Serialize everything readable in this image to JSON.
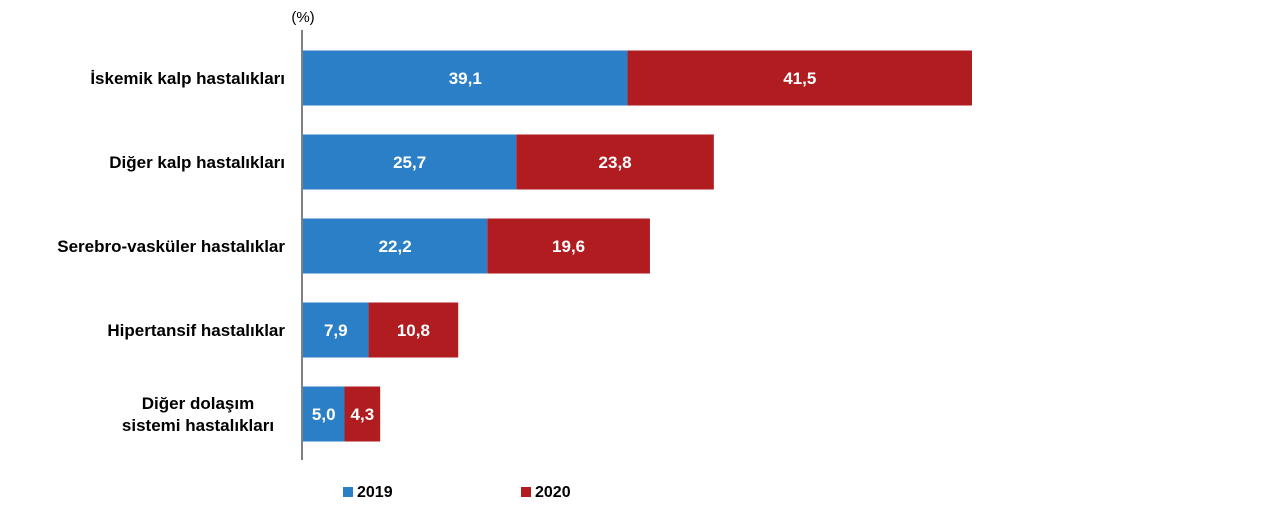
{
  "chart_data": {
    "type": "bar",
    "orientation": "horizontal",
    "stacked": true,
    "unit_label": "(%)",
    "categories": [
      [
        "İskemik kalp hastalıkları"
      ],
      [
        "Diğer kalp hastalıkları"
      ],
      [
        "Serebro-vasküler hastalıklar"
      ],
      [
        "Hipertansif hastalıklar"
      ],
      [
        "Diğer dolaşım",
        "sistemi hastalıkları"
      ]
    ],
    "series": [
      {
        "name": "2019",
        "color": "#2a7fc7",
        "values": [
          39.1,
          25.7,
          22.2,
          7.9,
          5.0
        ],
        "labels": [
          "39,1",
          "25,7",
          "22,2",
          "7,9",
          "5,0"
        ]
      },
      {
        "name": "2020",
        "color": "#b01c20",
        "values": [
          41.5,
          23.8,
          19.6,
          10.8,
          4.3
        ],
        "labels": [
          "41,5",
          "23,8",
          "19,6",
          "10,8",
          "4,3"
        ]
      }
    ],
    "grid": false,
    "legend_position": "bottom"
  }
}
